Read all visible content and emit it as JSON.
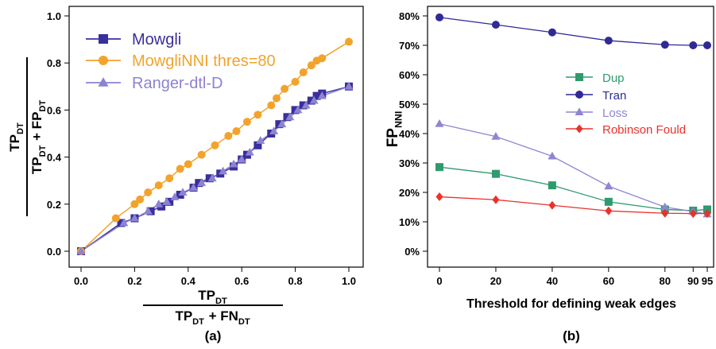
{
  "chart_data": [
    {
      "id": "a",
      "type": "line",
      "panel_label": "(a)",
      "xlabel": {
        "numerator": {
          "base": "TP",
          "sub": "DT"
        },
        "denominator": [
          {
            "base": "TP",
            "sub": "DT"
          },
          {
            "plain": " + "
          },
          {
            "base": "FN",
            "sub": "DT"
          }
        ]
      },
      "ylabel": {
        "numerator": {
          "base": "TP",
          "sub": "DT"
        },
        "denominator": [
          {
            "base": "TP",
            "sub": "DT"
          },
          {
            "plain": " + "
          },
          {
            "base": "FP",
            "sub": "DT"
          }
        ]
      },
      "xlim": [
        0,
        1
      ],
      "ylim": [
        0,
        1
      ],
      "xticks": [
        0,
        0.2,
        0.4,
        0.6,
        0.8,
        1
      ],
      "xtick_labels": [
        "0.0",
        "0.2",
        "0.4",
        "0.6",
        "0.8",
        "1.0"
      ],
      "yticks": [
        0,
        0.2,
        0.4,
        0.6,
        0.8,
        1
      ],
      "ytick_labels": [
        "0.0",
        "0.2",
        "0.4",
        "0.6",
        "0.8",
        "1.0"
      ],
      "grid": false,
      "legend_position": "top-left",
      "series": [
        {
          "name": "Mowgli",
          "color": "#3a2f9c",
          "marker": "square",
          "x": [
            0,
            0.15,
            0.2,
            0.26,
            0.3,
            0.33,
            0.37,
            0.42,
            0.44,
            0.48,
            0.52,
            0.57,
            0.6,
            0.62,
            0.66,
            0.71,
            0.74,
            0.77,
            0.8,
            0.83,
            0.86,
            0.88,
            0.9,
            1.0
          ],
          "y": [
            0,
            0.12,
            0.14,
            0.17,
            0.19,
            0.21,
            0.24,
            0.27,
            0.29,
            0.31,
            0.33,
            0.36,
            0.39,
            0.41,
            0.45,
            0.5,
            0.54,
            0.57,
            0.6,
            0.62,
            0.64,
            0.66,
            0.67,
            0.7
          ]
        },
        {
          "name": "MowgliNNI thres=80",
          "color": "#f2a32c",
          "marker": "circle",
          "x": [
            0,
            0.13,
            0.2,
            0.22,
            0.25,
            0.29,
            0.33,
            0.37,
            0.4,
            0.45,
            0.5,
            0.55,
            0.58,
            0.62,
            0.66,
            0.71,
            0.73,
            0.76,
            0.8,
            0.83,
            0.86,
            0.88,
            0.9,
            1.0
          ],
          "y": [
            0,
            0.14,
            0.2,
            0.22,
            0.25,
            0.28,
            0.31,
            0.35,
            0.37,
            0.41,
            0.45,
            0.49,
            0.51,
            0.55,
            0.58,
            0.62,
            0.65,
            0.69,
            0.72,
            0.76,
            0.79,
            0.81,
            0.82,
            0.89
          ]
        },
        {
          "name": "Ranger-dtl-D",
          "color": "#8c83d1",
          "marker": "triangle",
          "x": [
            0,
            0.16,
            0.2,
            0.25,
            0.29,
            0.32,
            0.35,
            0.38,
            0.42,
            0.45,
            0.49,
            0.53,
            0.57,
            0.6,
            0.63,
            0.67,
            0.72,
            0.75,
            0.78,
            0.81,
            0.84,
            0.87,
            0.9,
            1.0
          ],
          "y": [
            0,
            0.12,
            0.14,
            0.17,
            0.2,
            0.21,
            0.23,
            0.25,
            0.27,
            0.29,
            0.31,
            0.34,
            0.37,
            0.39,
            0.42,
            0.47,
            0.51,
            0.54,
            0.57,
            0.6,
            0.62,
            0.64,
            0.66,
            0.7
          ]
        }
      ]
    },
    {
      "id": "b",
      "type": "line",
      "panel_label": "(b)",
      "xlabel": "Threshold for defining weak edges",
      "ylabel": {
        "base": "FP",
        "sub": "NNI"
      },
      "categories": [
        "0",
        "20",
        "40",
        "60",
        "80",
        "90",
        "95"
      ],
      "x": [
        0,
        20,
        40,
        60,
        80,
        90,
        95
      ],
      "xlim": [
        0,
        95
      ],
      "ylim": [
        0,
        80
      ],
      "yticks": [
        0,
        10,
        20,
        30,
        40,
        50,
        60,
        70,
        80
      ],
      "ytick_labels": [
        "0%",
        "10%",
        "20%",
        "30%",
        "40%",
        "50%",
        "60%",
        "70%",
        "80%"
      ],
      "grid": false,
      "legend_position": "center-right",
      "series": [
        {
          "name": "Dup",
          "color": "#2f9a6e",
          "marker": "square",
          "values": [
            28.6,
            26.3,
            22.4,
            16.8,
            14.2,
            13.8,
            14.2
          ]
        },
        {
          "name": "Tran",
          "color": "#2f2a95",
          "marker": "circle",
          "values": [
            79.5,
            77.0,
            74.4,
            71.6,
            70.2,
            70.0,
            70.0
          ]
        },
        {
          "name": "Loss",
          "color": "#8f86d0",
          "marker": "triangle",
          "values": [
            43.3,
            39.0,
            32.3,
            22.1,
            15.0,
            13.5,
            12.6
          ]
        },
        {
          "name": "Robinson Fould",
          "color": "#e8322b",
          "marker": "diamond",
          "values": [
            18.5,
            17.5,
            15.6,
            13.7,
            12.9,
            12.8,
            12.8
          ]
        }
      ]
    }
  ]
}
